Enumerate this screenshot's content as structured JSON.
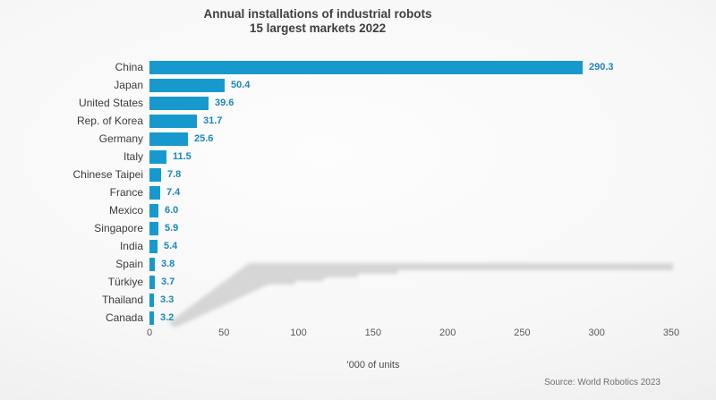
{
  "title": {
    "line1": "Annual installations of industrial robots",
    "line2": "15 largest markets 2022"
  },
  "chart_data": {
    "type": "bar",
    "orientation": "horizontal",
    "title": "Annual installations of industrial robots",
    "subtitle": "15 largest markets 2022",
    "categories": [
      "China",
      "Japan",
      "United States",
      "Rep. of Korea",
      "Germany",
      "Italy",
      "Chinese Taipei",
      "France",
      "Mexico",
      "Singapore",
      "India",
      "Spain",
      "Türkiye",
      "Thailand",
      "Canada"
    ],
    "values": [
      290.3,
      50.4,
      39.6,
      31.7,
      25.6,
      11.5,
      7.8,
      7.4,
      6.0,
      5.9,
      5.4,
      3.8,
      3.7,
      3.3,
      3.2
    ],
    "value_labels": [
      "290.3",
      "50.4",
      "39.6",
      "31.7",
      "25.6",
      "11.5",
      "7.8",
      "7.4",
      "6.0",
      "5.9",
      "5.4",
      "3.8",
      "3.7",
      "3.3",
      "3.2"
    ],
    "xlabel": "'000 of units",
    "xticks": [
      "0",
      "50",
      "100",
      "150",
      "200",
      "250",
      "300",
      "350"
    ],
    "xlim": [
      0,
      350
    ],
    "grid": false,
    "legend": "none",
    "bar_color": "#1899CE",
    "value_label_color": "#1B86BD"
  },
  "source": "Source: World Robotics 2023",
  "colors": {
    "bar": "#1899CE",
    "value_label": "#1B86BD",
    "category_label": "#3b3b3b",
    "tick_label": "#595959",
    "title_text": "#3f3f3f",
    "shadow": "#9e9e9e",
    "background_center": "#fdfdfd",
    "background_edge": "#e1e1e1"
  }
}
